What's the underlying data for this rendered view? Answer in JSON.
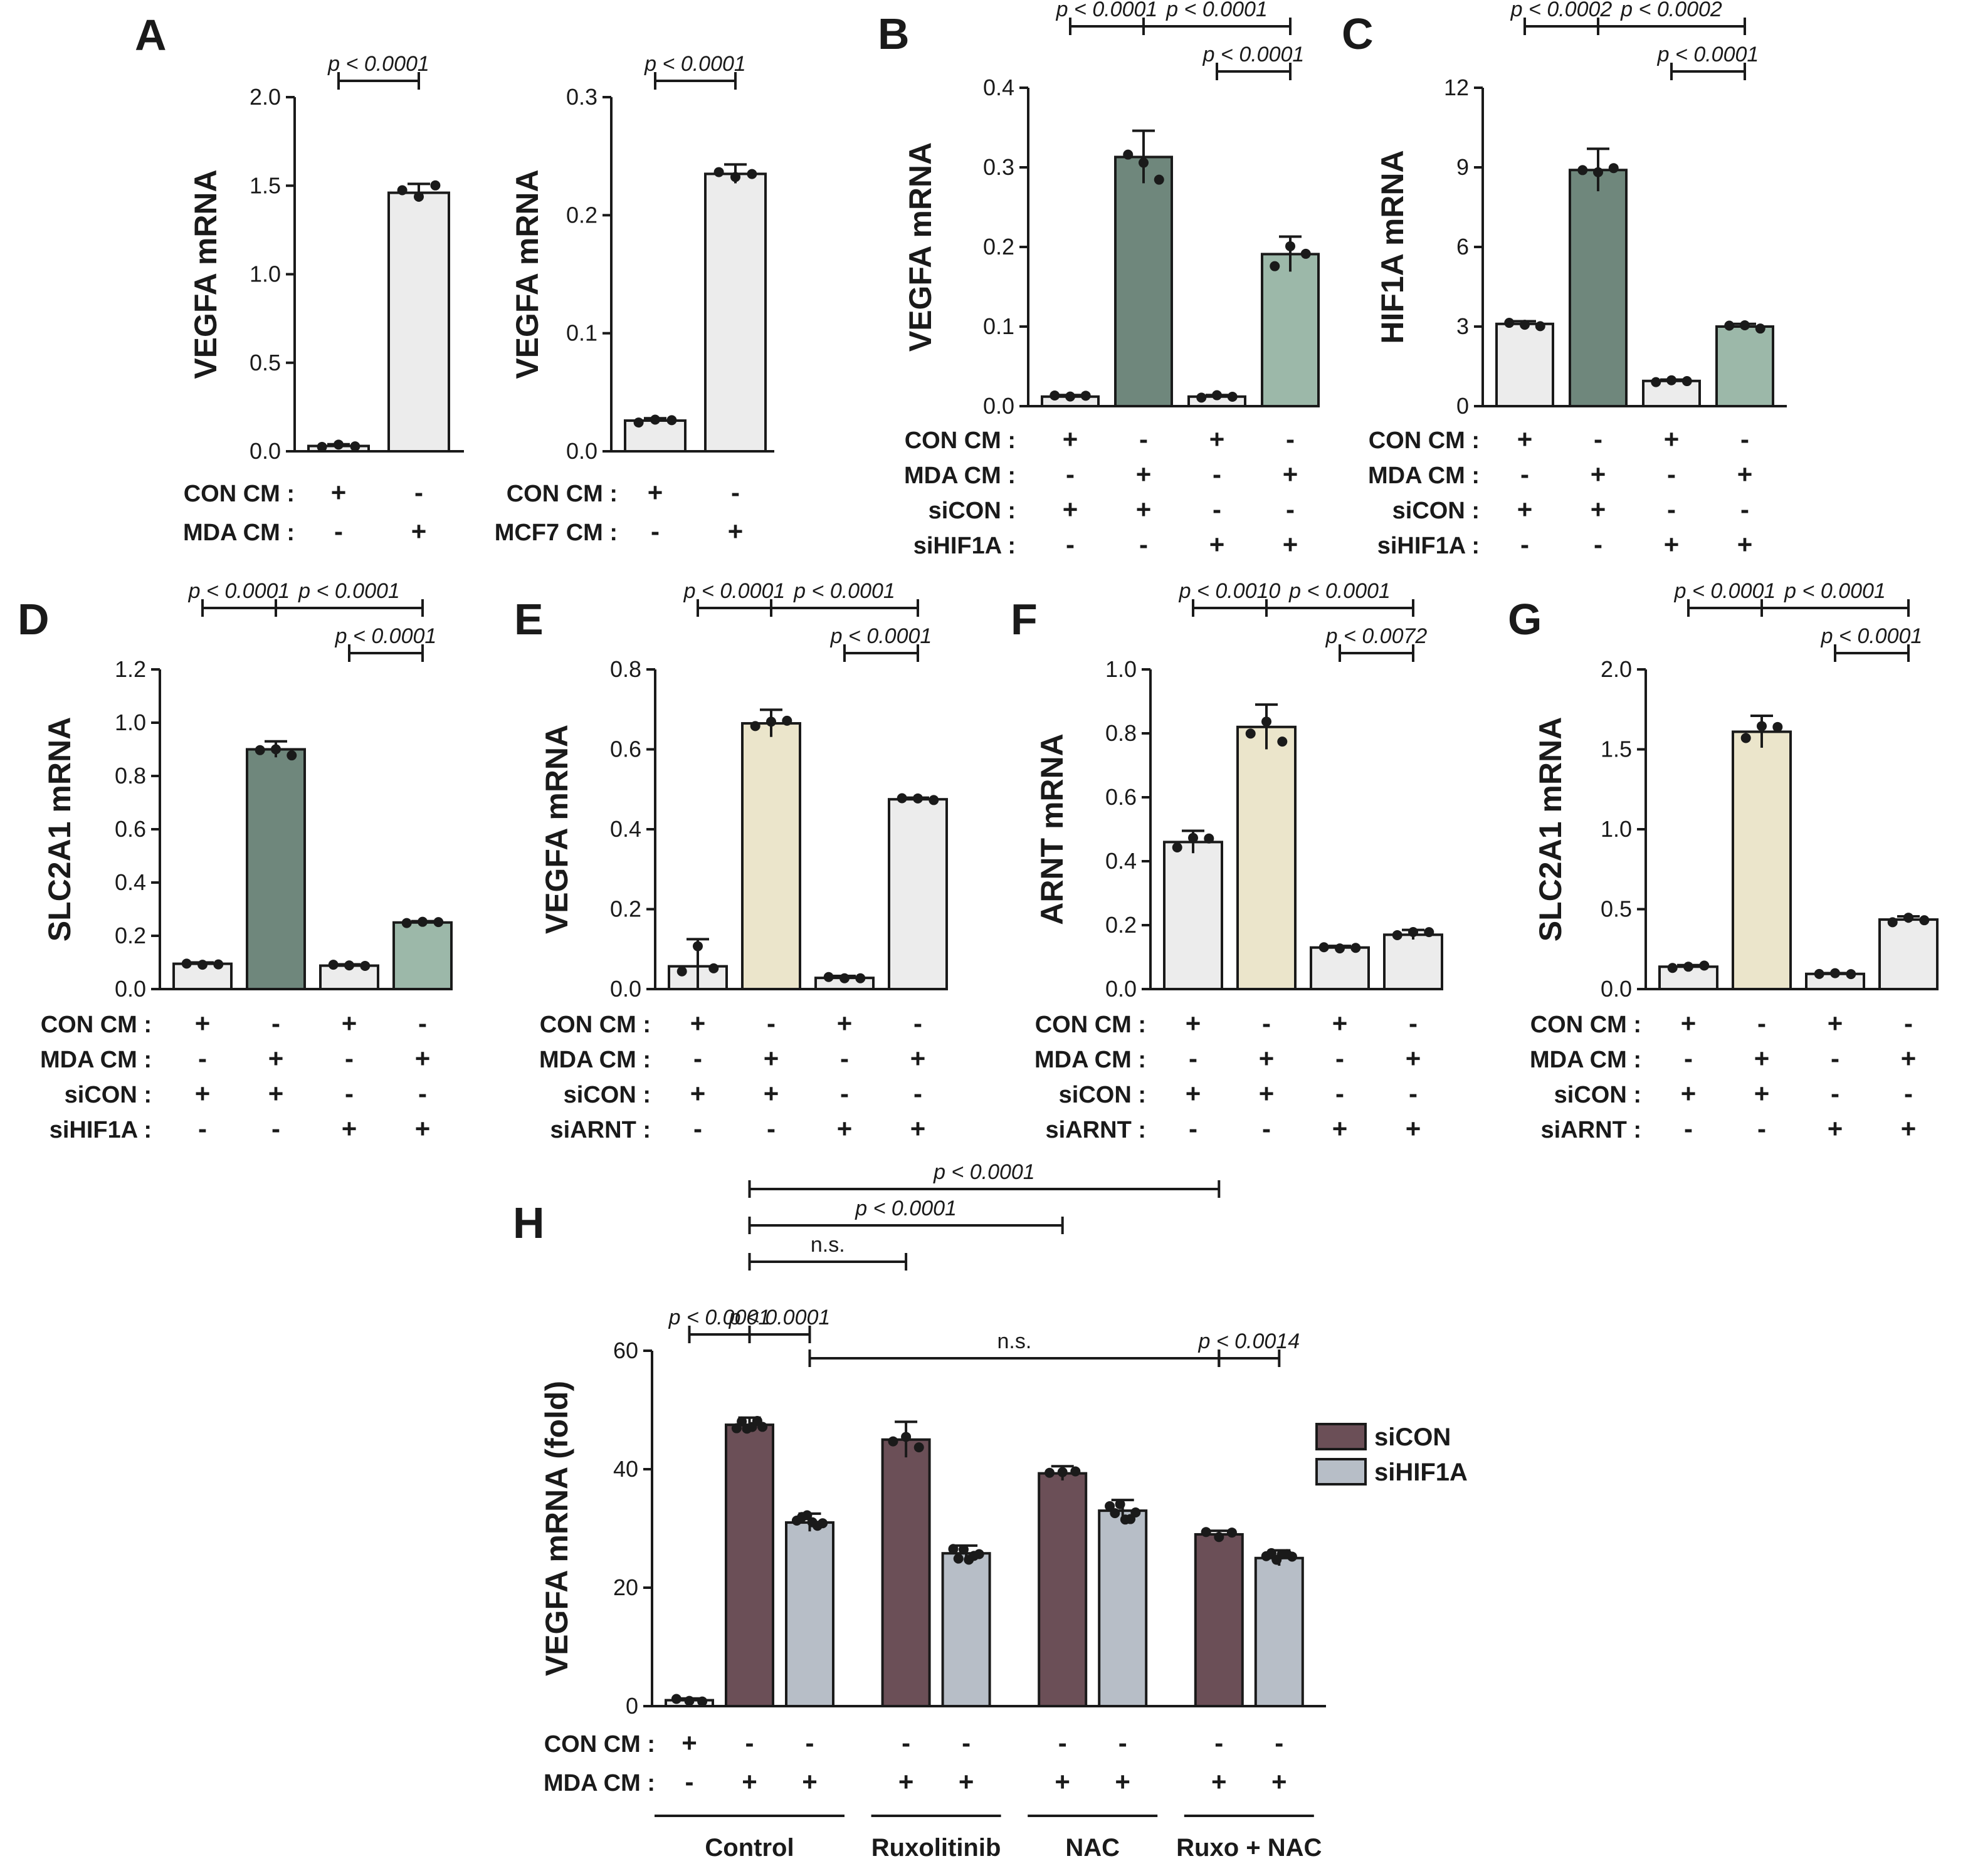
{
  "chart_data": [
    {
      "id": "A1",
      "type": "bar",
      "panel_label": "A",
      "ylabel": "VEGFA mRNA",
      "ylim": [
        0,
        2.0
      ],
      "yticks": [
        "0.0",
        "0.5",
        "1.0",
        "1.5",
        "2.0"
      ],
      "categories": [
        "CON CM + / MDA CM -",
        "CON CM - / MDA CM +"
      ],
      "values": [
        0.03,
        1.46
      ],
      "errors": [
        0.01,
        0.05
      ],
      "bar_colors": [
        "#ececec",
        "#ececec"
      ],
      "condition_rows": [
        {
          "label": "CON CM :",
          "signs": [
            "+",
            "-"
          ]
        },
        {
          "label": "MDA CM :",
          "signs": [
            "-",
            "+"
          ]
        }
      ],
      "comparisons": [
        {
          "text": "p < 0.0001",
          "from": 0,
          "to": 1,
          "level": 0
        }
      ]
    },
    {
      "id": "A2",
      "type": "bar",
      "panel_label": "",
      "ylabel": "VEGFA mRNA",
      "ylim": [
        0,
        0.3
      ],
      "yticks": [
        "0.0",
        "0.1",
        "0.2",
        "0.3"
      ],
      "categories": [
        "CON CM + / MCF7 CM -",
        "CON CM - / MCF7 CM +"
      ],
      "values": [
        0.026,
        0.235
      ],
      "errors": [
        0.002,
        0.008
      ],
      "bar_colors": [
        "#ececec",
        "#ececec"
      ],
      "condition_rows": [
        {
          "label": "CON CM :",
          "signs": [
            "+",
            "-"
          ]
        },
        {
          "label": "MCF7 CM :",
          "signs": [
            "-",
            "+"
          ]
        }
      ],
      "comparisons": [
        {
          "text": "p < 0.0001",
          "from": 0,
          "to": 1,
          "level": 0
        }
      ]
    },
    {
      "id": "B",
      "type": "bar",
      "panel_label": "B",
      "ylabel": "VEGFA mRNA",
      "ylim": [
        0,
        0.4
      ],
      "yticks": [
        "0.0",
        "0.1",
        "0.2",
        "0.3",
        "0.4"
      ],
      "categories": [
        "1",
        "2",
        "3",
        "4"
      ],
      "values": [
        0.012,
        0.313,
        0.012,
        0.191
      ],
      "errors": [
        0.002,
        0.033,
        0.002,
        0.022
      ],
      "bar_colors": [
        "#ececec",
        "#6f877c",
        "#ececec",
        "#9cb8a9"
      ],
      "condition_rows": [
        {
          "label": "CON CM :",
          "signs": [
            "+",
            "-",
            "+",
            "-"
          ]
        },
        {
          "label": "MDA CM :",
          "signs": [
            "-",
            "+",
            "-",
            "+"
          ]
        },
        {
          "label": "siCON :",
          "signs": [
            "+",
            "+",
            "-",
            "-"
          ]
        },
        {
          "label": "siHIF1A :",
          "signs": [
            "-",
            "-",
            "+",
            "+"
          ]
        }
      ],
      "comparisons": [
        {
          "text": "p < 0.0001",
          "from": 0,
          "to": 1,
          "level": 1
        },
        {
          "text": "p < 0.0001",
          "from": 1,
          "to": 3,
          "level": 1
        },
        {
          "text": "p < 0.0001",
          "from": 2,
          "to": 3,
          "level": 0
        }
      ]
    },
    {
      "id": "C",
      "type": "bar",
      "panel_label": "C",
      "ylabel": "HIF1A mRNA",
      "ylim": [
        0,
        12
      ],
      "yticks": [
        "0",
        "3",
        "6",
        "9",
        "12"
      ],
      "categories": [
        "1",
        "2",
        "3",
        "4"
      ],
      "values": [
        3.1,
        8.9,
        0.95,
        3.0
      ],
      "errors": [
        0.1,
        0.8,
        0.05,
        0.1
      ],
      "bar_colors": [
        "#ececec",
        "#6f877c",
        "#ececec",
        "#9cb8a9"
      ],
      "condition_rows": [
        {
          "label": "CON CM :",
          "signs": [
            "+",
            "-",
            "+",
            "-"
          ]
        },
        {
          "label": "MDA CM :",
          "signs": [
            "-",
            "+",
            "-",
            "+"
          ]
        },
        {
          "label": "siCON :",
          "signs": [
            "+",
            "+",
            "-",
            "-"
          ]
        },
        {
          "label": "siHIF1A :",
          "signs": [
            "-",
            "-",
            "+",
            "+"
          ]
        }
      ],
      "comparisons": [
        {
          "text": "p < 0.0002",
          "from": 0,
          "to": 1,
          "level": 1
        },
        {
          "text": "p < 0.0002",
          "from": 1,
          "to": 3,
          "level": 1
        },
        {
          "text": "p < 0.0001",
          "from": 2,
          "to": 3,
          "level": 0
        }
      ]
    },
    {
      "id": "D",
      "type": "bar",
      "panel_label": "D",
      "ylabel": "SLC2A1 mRNA",
      "ylim": [
        0,
        1.2
      ],
      "yticks": [
        "0.0",
        "0.2",
        "0.4",
        "0.6",
        "0.8",
        "1.0",
        "1.2"
      ],
      "categories": [
        "1",
        "2",
        "3",
        "4"
      ],
      "values": [
        0.095,
        0.9,
        0.088,
        0.25
      ],
      "errors": [
        0.005,
        0.03,
        0.005,
        0.005
      ],
      "bar_colors": [
        "#ececec",
        "#6f877c",
        "#ececec",
        "#9cb8a9"
      ],
      "condition_rows": [
        {
          "label": "CON CM :",
          "signs": [
            "+",
            "-",
            "+",
            "-"
          ]
        },
        {
          "label": "MDA CM :",
          "signs": [
            "-",
            "+",
            "-",
            "+"
          ]
        },
        {
          "label": "siCON :",
          "signs": [
            "+",
            "+",
            "-",
            "-"
          ]
        },
        {
          "label": "siHIF1A :",
          "signs": [
            "-",
            "-",
            "+",
            "+"
          ]
        }
      ],
      "comparisons": [
        {
          "text": "p < 0.0001",
          "from": 0,
          "to": 1,
          "level": 1
        },
        {
          "text": "p < 0.0001",
          "from": 1,
          "to": 3,
          "level": 1
        },
        {
          "text": "p < 0.0001",
          "from": 2,
          "to": 3,
          "level": 0
        }
      ]
    },
    {
      "id": "E",
      "type": "bar",
      "panel_label": "E",
      "ylabel": "VEGFA mRNA",
      "ylim": [
        0,
        0.8
      ],
      "yticks": [
        "0.0",
        "0.2",
        "0.4",
        "0.6",
        "0.8"
      ],
      "categories": [
        "1",
        "2",
        "3",
        "4"
      ],
      "values": [
        0.057,
        0.665,
        0.028,
        0.475
      ],
      "errors": [
        0.068,
        0.034,
        0.005,
        0.004
      ],
      "bar_colors": [
        "#ececec",
        "#ebe5cb",
        "#ececec",
        "#ececec"
      ],
      "condition_rows": [
        {
          "label": "CON CM :",
          "signs": [
            "+",
            "-",
            "+",
            "-"
          ]
        },
        {
          "label": "MDA CM :",
          "signs": [
            "-",
            "+",
            "-",
            "+"
          ]
        },
        {
          "label": "siCON :",
          "signs": [
            "+",
            "+",
            "-",
            "-"
          ]
        },
        {
          "label": "siARNT :",
          "signs": [
            "-",
            "-",
            "+",
            "+"
          ]
        }
      ],
      "comparisons": [
        {
          "text": "p < 0.0001",
          "from": 0,
          "to": 1,
          "level": 1
        },
        {
          "text": "p < 0.0001",
          "from": 1,
          "to": 3,
          "level": 1
        },
        {
          "text": "p < 0.0001",
          "from": 2,
          "to": 3,
          "level": 0
        }
      ]
    },
    {
      "id": "F",
      "type": "bar",
      "panel_label": "F",
      "ylabel": "ARNT mRNA",
      "ylim": [
        0,
        1.0
      ],
      "yticks": [
        "0.0",
        "0.2",
        "0.4",
        "0.6",
        "0.8",
        "1.0"
      ],
      "categories": [
        "1",
        "2",
        "3",
        "4"
      ],
      "values": [
        0.46,
        0.82,
        0.13,
        0.17
      ],
      "errors": [
        0.035,
        0.07,
        0.005,
        0.015
      ],
      "bar_colors": [
        "#ececec",
        "#ebe5cb",
        "#ececec",
        "#ececec"
      ],
      "condition_rows": [
        {
          "label": "CON CM :",
          "signs": [
            "+",
            "-",
            "+",
            "-"
          ]
        },
        {
          "label": "MDA CM :",
          "signs": [
            "-",
            "+",
            "-",
            "+"
          ]
        },
        {
          "label": "siCON :",
          "signs": [
            "+",
            "+",
            "-",
            "-"
          ]
        },
        {
          "label": "siARNT :",
          "signs": [
            "-",
            "-",
            "+",
            "+"
          ]
        }
      ],
      "comparisons": [
        {
          "text": "p < 0.0010",
          "from": 0,
          "to": 1,
          "level": 1
        },
        {
          "text": "p < 0.0001",
          "from": 1,
          "to": 3,
          "level": 1
        },
        {
          "text": "p < 0.0072",
          "from": 2,
          "to": 3,
          "level": 0
        }
      ]
    },
    {
      "id": "G",
      "type": "bar",
      "panel_label": "G",
      "ylabel": "SLC2A1 mRNA",
      "ylim": [
        0,
        2.0
      ],
      "yticks": [
        "0.0",
        "0.5",
        "1.0",
        "1.5",
        "2.0"
      ],
      "categories": [
        "1",
        "2",
        "3",
        "4"
      ],
      "values": [
        0.14,
        1.61,
        0.095,
        0.435
      ],
      "errors": [
        0.01,
        0.1,
        0.005,
        0.02
      ],
      "bar_colors": [
        "#ececec",
        "#ebe5cb",
        "#ececec",
        "#ececec"
      ],
      "condition_rows": [
        {
          "label": "CON CM :",
          "signs": [
            "+",
            "-",
            "+",
            "-"
          ]
        },
        {
          "label": "MDA CM :",
          "signs": [
            "-",
            "+",
            "-",
            "+"
          ]
        },
        {
          "label": "siCON :",
          "signs": [
            "+",
            "+",
            "-",
            "-"
          ]
        },
        {
          "label": "siARNT :",
          "signs": [
            "-",
            "-",
            "+",
            "+"
          ]
        }
      ],
      "comparisons": [
        {
          "text": "p < 0.0001",
          "from": 0,
          "to": 1,
          "level": 1
        },
        {
          "text": "p < 0.0001",
          "from": 1,
          "to": 3,
          "level": 1
        },
        {
          "text": "p < 0.0001",
          "from": 2,
          "to": 3,
          "level": 0
        }
      ]
    },
    {
      "id": "H",
      "type": "bar",
      "panel_label": "H",
      "ylabel": "VEGFA mRNA (fold)",
      "ylim": [
        0,
        60
      ],
      "yticks": [
        "0",
        "20",
        "40",
        "60"
      ],
      "categories": [
        "CON",
        "Control siCON",
        "Control siHIF1A",
        "Ruxolitinib siCON",
        "Ruxolitinib siHIF1A",
        "NAC siCON",
        "NAC siHIF1A",
        "Ruxo + NAC siCON",
        "Ruxo + NAC siHIF1A"
      ],
      "values": [
        1.0,
        47.5,
        31.0,
        45.0,
        25.8,
        39.3,
        33.0,
        29.0,
        25.0
      ],
      "errors": [
        0.3,
        1.2,
        1.5,
        3.0,
        1.3,
        1.2,
        1.8,
        0.6,
        1.3
      ],
      "bar_colors": [
        "#ececec",
        "#6b4f57",
        "#b7bec7",
        "#6b4f57",
        "#b7bec7",
        "#6b4f57",
        "#b7bec7",
        "#6b4f57",
        "#b7bec7"
      ],
      "bar_slots": [
        0,
        1,
        2,
        3.6,
        4.6,
        6.2,
        7.2,
        8.8,
        9.8
      ],
      "condition_rows": [
        {
          "label": "CON  CM :",
          "signs": [
            "+",
            "-",
            "-",
            "-",
            "-",
            "-",
            "-",
            "-",
            "-"
          ]
        },
        {
          "label": "MDA  CM :",
          "signs": [
            "-",
            "+",
            "+",
            "+",
            "+",
            "+",
            "+",
            "+",
            "+"
          ]
        }
      ],
      "groups": [
        {
          "label": "Control",
          "from": 0,
          "to": 2
        },
        {
          "label": "Ruxolitinib",
          "from": 3,
          "to": 4
        },
        {
          "label": "NAC",
          "from": 5,
          "to": 6
        },
        {
          "label": "Ruxo + NAC",
          "from": 7,
          "to": 8
        }
      ],
      "legend": [
        {
          "label": "siCON",
          "color": "#6b4f57"
        },
        {
          "label": "siHIF1A",
          "color": "#b7bec7"
        }
      ],
      "comparisons": [
        {
          "text": "p < 0.0001",
          "from": 1,
          "to": 7,
          "level": 4
        },
        {
          "text": "p < 0.0001",
          "from": 1,
          "to": 5,
          "level": 3
        },
        {
          "text": "n.s.",
          "from": 1,
          "to": 3,
          "level": 2
        },
        {
          "text": "p < 0.0001",
          "from": 0,
          "to": 1,
          "level": 0
        },
        {
          "text": "p < 0.0001",
          "from": 1,
          "to": 2,
          "level": 0
        },
        {
          "text": "n.s.",
          "from": 2,
          "to": 7,
          "level": -1
        },
        {
          "text": "p < 0.0014",
          "from": 7,
          "to": 8,
          "level": -1
        }
      ]
    }
  ]
}
